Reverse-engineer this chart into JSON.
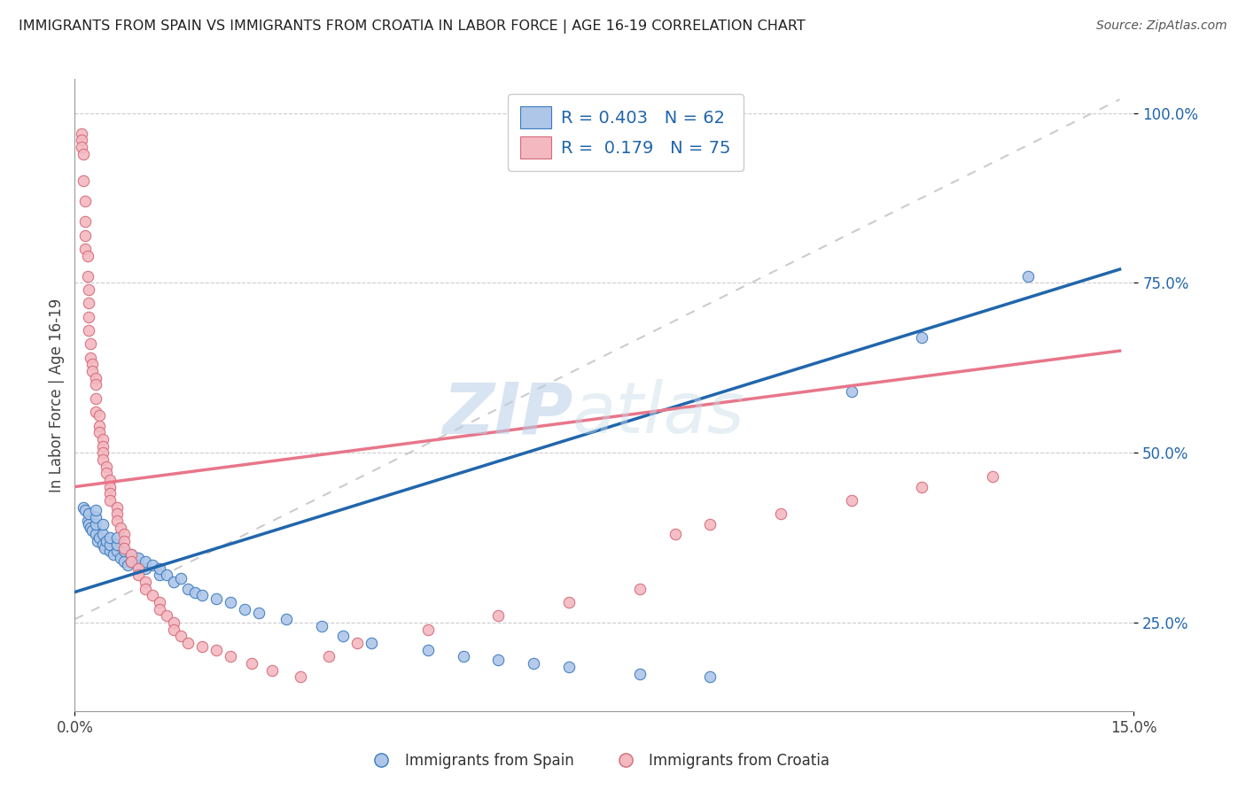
{
  "title": "IMMIGRANTS FROM SPAIN VS IMMIGRANTS FROM CROATIA IN LABOR FORCE | AGE 16-19 CORRELATION CHART",
  "source": "Source: ZipAtlas.com",
  "ylabel": "In Labor Force | Age 16-19",
  "legend_blue_R": "R = 0.403",
  "legend_blue_N": "N = 62",
  "legend_pink_R": "R =  0.179",
  "legend_pink_N": "N = 75",
  "watermark_zip": "ZIP",
  "watermark_atlas": "atlas",
  "blue_color": "#aec6e8",
  "pink_color": "#f4b8c1",
  "blue_edge_color": "#3a7abf",
  "pink_edge_color": "#d46a78",
  "blue_line_color": "#2166ac",
  "pink_line_color": "#e8768a",
  "dashed_line_color": "#cccccc",
  "legend_text_color": "#2166ac",
  "blue_scatter": [
    [
      0.0012,
      0.42
    ],
    [
      0.0015,
      0.415
    ],
    [
      0.0018,
      0.4
    ],
    [
      0.002,
      0.395
    ],
    [
      0.002,
      0.41
    ],
    [
      0.0022,
      0.39
    ],
    [
      0.0025,
      0.385
    ],
    [
      0.003,
      0.38
    ],
    [
      0.003,
      0.395
    ],
    [
      0.003,
      0.405
    ],
    [
      0.003,
      0.415
    ],
    [
      0.0032,
      0.37
    ],
    [
      0.0035,
      0.375
    ],
    [
      0.004,
      0.365
    ],
    [
      0.004,
      0.38
    ],
    [
      0.004,
      0.395
    ],
    [
      0.0042,
      0.36
    ],
    [
      0.0045,
      0.37
    ],
    [
      0.005,
      0.355
    ],
    [
      0.005,
      0.365
    ],
    [
      0.005,
      0.375
    ],
    [
      0.0055,
      0.35
    ],
    [
      0.006,
      0.355
    ],
    [
      0.006,
      0.365
    ],
    [
      0.006,
      0.375
    ],
    [
      0.0065,
      0.345
    ],
    [
      0.007,
      0.34
    ],
    [
      0.007,
      0.355
    ],
    [
      0.0075,
      0.335
    ],
    [
      0.008,
      0.34
    ],
    [
      0.008,
      0.35
    ],
    [
      0.009,
      0.335
    ],
    [
      0.009,
      0.345
    ],
    [
      0.01,
      0.33
    ],
    [
      0.01,
      0.34
    ],
    [
      0.011,
      0.335
    ],
    [
      0.012,
      0.32
    ],
    [
      0.012,
      0.33
    ],
    [
      0.013,
      0.32
    ],
    [
      0.014,
      0.31
    ],
    [
      0.015,
      0.315
    ],
    [
      0.016,
      0.3
    ],
    [
      0.017,
      0.295
    ],
    [
      0.018,
      0.29
    ],
    [
      0.02,
      0.285
    ],
    [
      0.022,
      0.28
    ],
    [
      0.024,
      0.27
    ],
    [
      0.026,
      0.265
    ],
    [
      0.03,
      0.255
    ],
    [
      0.035,
      0.245
    ],
    [
      0.038,
      0.23
    ],
    [
      0.042,
      0.22
    ],
    [
      0.05,
      0.21
    ],
    [
      0.055,
      0.2
    ],
    [
      0.06,
      0.195
    ],
    [
      0.065,
      0.19
    ],
    [
      0.07,
      0.185
    ],
    [
      0.08,
      0.175
    ],
    [
      0.09,
      0.17
    ],
    [
      0.11,
      0.59
    ],
    [
      0.12,
      0.67
    ],
    [
      0.135,
      0.76
    ]
  ],
  "pink_scatter": [
    [
      0.001,
      0.97
    ],
    [
      0.001,
      0.96
    ],
    [
      0.001,
      0.95
    ],
    [
      0.0012,
      0.94
    ],
    [
      0.0012,
      0.9
    ],
    [
      0.0014,
      0.87
    ],
    [
      0.0015,
      0.84
    ],
    [
      0.0015,
      0.82
    ],
    [
      0.0015,
      0.8
    ],
    [
      0.0018,
      0.79
    ],
    [
      0.0018,
      0.76
    ],
    [
      0.002,
      0.74
    ],
    [
      0.002,
      0.72
    ],
    [
      0.002,
      0.7
    ],
    [
      0.002,
      0.68
    ],
    [
      0.0022,
      0.66
    ],
    [
      0.0022,
      0.64
    ],
    [
      0.0025,
      0.63
    ],
    [
      0.0025,
      0.62
    ],
    [
      0.003,
      0.61
    ],
    [
      0.003,
      0.6
    ],
    [
      0.003,
      0.58
    ],
    [
      0.003,
      0.56
    ],
    [
      0.0035,
      0.555
    ],
    [
      0.0035,
      0.54
    ],
    [
      0.0035,
      0.53
    ],
    [
      0.004,
      0.52
    ],
    [
      0.004,
      0.51
    ],
    [
      0.004,
      0.5
    ],
    [
      0.004,
      0.49
    ],
    [
      0.0045,
      0.48
    ],
    [
      0.0045,
      0.47
    ],
    [
      0.005,
      0.46
    ],
    [
      0.005,
      0.45
    ],
    [
      0.005,
      0.44
    ],
    [
      0.005,
      0.43
    ],
    [
      0.006,
      0.42
    ],
    [
      0.006,
      0.41
    ],
    [
      0.006,
      0.4
    ],
    [
      0.0065,
      0.39
    ],
    [
      0.007,
      0.38
    ],
    [
      0.007,
      0.37
    ],
    [
      0.007,
      0.36
    ],
    [
      0.008,
      0.35
    ],
    [
      0.008,
      0.34
    ],
    [
      0.009,
      0.33
    ],
    [
      0.009,
      0.32
    ],
    [
      0.01,
      0.31
    ],
    [
      0.01,
      0.3
    ],
    [
      0.011,
      0.29
    ],
    [
      0.012,
      0.28
    ],
    [
      0.012,
      0.27
    ],
    [
      0.013,
      0.26
    ],
    [
      0.014,
      0.25
    ],
    [
      0.014,
      0.24
    ],
    [
      0.015,
      0.23
    ],
    [
      0.016,
      0.22
    ],
    [
      0.018,
      0.215
    ],
    [
      0.02,
      0.21
    ],
    [
      0.022,
      0.2
    ],
    [
      0.025,
      0.19
    ],
    [
      0.028,
      0.18
    ],
    [
      0.032,
      0.17
    ],
    [
      0.036,
      0.2
    ],
    [
      0.04,
      0.22
    ],
    [
      0.05,
      0.24
    ],
    [
      0.06,
      0.26
    ],
    [
      0.07,
      0.28
    ],
    [
      0.08,
      0.3
    ],
    [
      0.085,
      0.38
    ],
    [
      0.09,
      0.395
    ],
    [
      0.1,
      0.41
    ],
    [
      0.11,
      0.43
    ],
    [
      0.12,
      0.45
    ],
    [
      0.13,
      0.465
    ]
  ],
  "blue_line": {
    "x0": 0.0,
    "x1": 0.148,
    "y0": 0.295,
    "y1": 0.77
  },
  "pink_line": {
    "x0": 0.0,
    "x1": 0.148,
    "y0": 0.45,
    "y1": 0.65
  },
  "dashed_line": {
    "x0": 0.0,
    "x1": 0.148,
    "y0": 0.255,
    "y1": 1.02
  },
  "xlim": [
    0.0,
    0.15
  ],
  "ylim": [
    0.12,
    1.05
  ],
  "y_tick_vals": [
    0.25,
    0.5,
    0.75,
    1.0
  ],
  "x_tick_vals": [
    0.0,
    0.15
  ]
}
